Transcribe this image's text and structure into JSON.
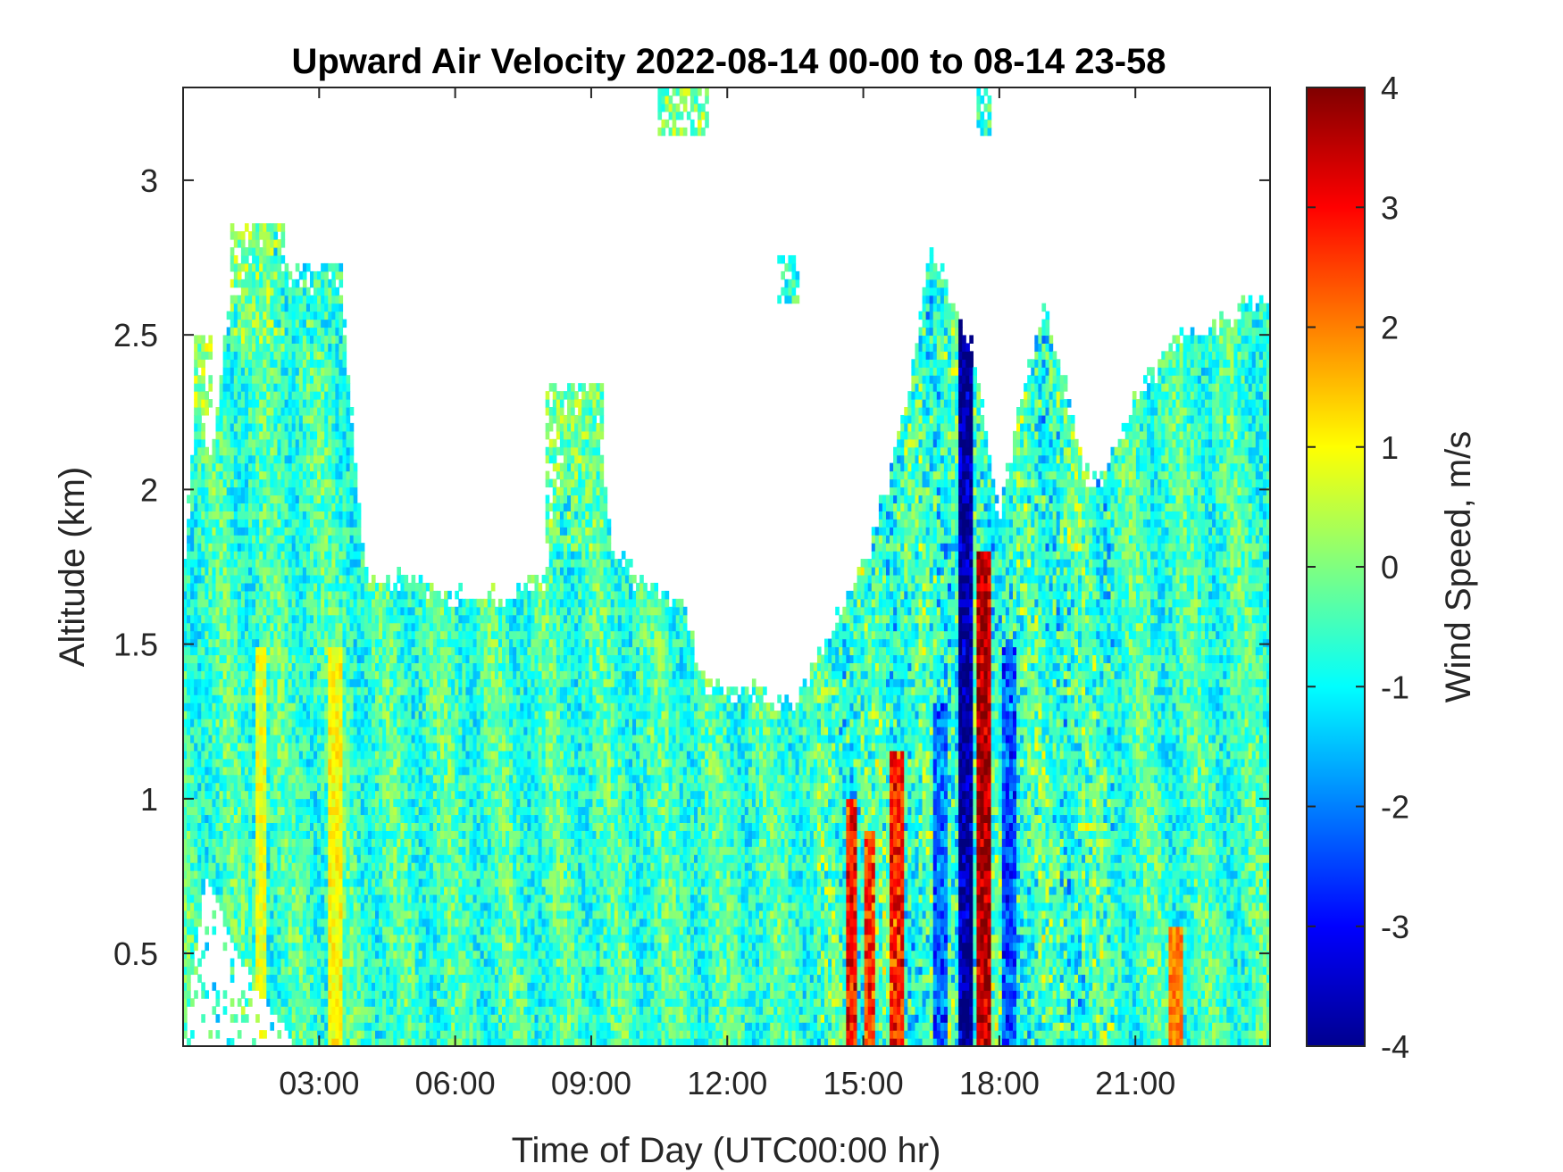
{
  "chart_data": {
    "type": "heatmap",
    "title": "Upward Air Velocity 2022-08-14 00-00 to 08-14 23-58",
    "xlabel": "Time of Day (UTC00:00 hr)",
    "ylabel": "Altitude (km)",
    "xlim_hours": [
      0,
      23.97
    ],
    "ylim_km": [
      0.2,
      3.3
    ],
    "x_ticks": [
      {
        "hour": 3,
        "label": "03:00"
      },
      {
        "hour": 6,
        "label": "06:00"
      },
      {
        "hour": 9,
        "label": "09:00"
      },
      {
        "hour": 12,
        "label": "12:00"
      },
      {
        "hour": 15,
        "label": "15:00"
      },
      {
        "hour": 18,
        "label": "18:00"
      },
      {
        "hour": 21,
        "label": "21:00"
      }
    ],
    "y_ticks": [
      {
        "value": 0.5,
        "label": "0.5"
      },
      {
        "value": 1,
        "label": "1"
      },
      {
        "value": 1.5,
        "label": "1.5"
      },
      {
        "value": 2,
        "label": "2"
      },
      {
        "value": 2.5,
        "label": "2.5"
      },
      {
        "value": 3,
        "label": "3"
      }
    ],
    "colorbar": {
      "label": "Wind Speed, m/s",
      "colormap": "jet",
      "clim": [
        -4,
        4
      ],
      "ticks": [
        {
          "value": 4,
          "label": "4"
        },
        {
          "value": 3,
          "label": "3"
        },
        {
          "value": 2,
          "label": "2"
        },
        {
          "value": 1,
          "label": "1"
        },
        {
          "value": 0,
          "label": "0"
        },
        {
          "value": -1,
          "label": "-1"
        },
        {
          "value": -2,
          "label": "-2"
        },
        {
          "value": -3,
          "label": "-3"
        },
        {
          "value": -4,
          "label": "-4"
        }
      ]
    },
    "data_top_km": [
      [
        0,
        1.7
      ],
      [
        0.3,
        2.3
      ],
      [
        0.6,
        2.1
      ],
      [
        1.0,
        2.55
      ],
      [
        1.5,
        2.75
      ],
      [
        2.0,
        2.85
      ],
      [
        2.5,
        2.6
      ],
      [
        3.0,
        2.7
      ],
      [
        3.5,
        2.6
      ],
      [
        4.0,
        1.75
      ],
      [
        5.0,
        1.7
      ],
      [
        6.0,
        1.65
      ],
      [
        7.0,
        1.65
      ],
      [
        8.0,
        1.7
      ],
      [
        8.5,
        2.2
      ],
      [
        9.0,
        2.3
      ],
      [
        9.5,
        1.8
      ],
      [
        10.0,
        1.7
      ],
      [
        11.0,
        1.65
      ],
      [
        11.5,
        1.35
      ],
      [
        12.5,
        1.35
      ],
      [
        13.5,
        1.3
      ],
      [
        14.0,
        1.45
      ],
      [
        14.5,
        1.6
      ],
      [
        15.0,
        1.75
      ],
      [
        15.5,
        2.0
      ],
      [
        16.0,
        2.3
      ],
      [
        16.5,
        2.8
      ],
      [
        17.0,
        2.6
      ],
      [
        17.5,
        2.4
      ],
      [
        18.0,
        1.9
      ],
      [
        18.5,
        2.3
      ],
      [
        19.0,
        2.6
      ],
      [
        19.5,
        2.3
      ],
      [
        20.0,
        2.0
      ],
      [
        20.5,
        2.1
      ],
      [
        21.0,
        2.3
      ],
      [
        21.5,
        2.4
      ],
      [
        22.0,
        2.5
      ],
      [
        22.5,
        2.5
      ],
      [
        23.0,
        2.55
      ],
      [
        23.5,
        2.6
      ],
      [
        23.97,
        2.6
      ]
    ],
    "data_bottom_gap_km": [
      [
        0,
        0.2
      ],
      [
        0.5,
        0.75
      ],
      [
        1.2,
        0.5
      ],
      [
        1.8,
        0.35
      ],
      [
        2.5,
        0.2
      ],
      [
        23.97,
        0.2
      ]
    ],
    "clouds": [
      {
        "t": [
          0.2,
          0.6
        ],
        "h": [
          2.25,
          2.5
        ],
        "mean": 0.2
      },
      {
        "t": [
          1.0,
          2.2
        ],
        "h": [
          2.45,
          2.85
        ],
        "mean": 0.0
      },
      {
        "t": [
          2.5,
          3.5
        ],
        "h": [
          2.45,
          2.72
        ],
        "mean": -0.7
      },
      {
        "t": [
          8.0,
          9.3
        ],
        "h": [
          1.8,
          2.35
        ],
        "mean": -0.1
      },
      {
        "t": [
          10.5,
          11.6
        ],
        "h": [
          3.15,
          3.3
        ],
        "mean": 0.0
      },
      {
        "t": [
          13.1,
          13.6
        ],
        "h": [
          2.6,
          2.75
        ],
        "mean": -0.6
      },
      {
        "t": [
          17.5,
          17.8
        ],
        "h": [
          3.15,
          3.3
        ],
        "mean": -0.5
      }
    ],
    "strong_features": [
      {
        "hour": 14.75,
        "h_top": 1.0,
        "mean": 2.8,
        "type": "updraft"
      },
      {
        "hour": 15.15,
        "h_top": 0.9,
        "mean": 2.5,
        "type": "updraft"
      },
      {
        "hour": 15.75,
        "h_top": 1.15,
        "mean": 2.7,
        "type": "updraft"
      },
      {
        "hour": 17.65,
        "h_top": 1.8,
        "mean": 3.6,
        "type": "updraft"
      },
      {
        "hour": 17.25,
        "h_top": 2.6,
        "mean": -3.8,
        "type": "downdraft"
      },
      {
        "hour": 18.2,
        "h_top": 1.5,
        "mean": -2.3,
        "type": "downdraft"
      },
      {
        "hour": 16.7,
        "h_top": 1.3,
        "mean": -2.2,
        "type": "downdraft"
      },
      {
        "hour": 21.9,
        "h_top": 0.6,
        "mean": 2.0,
        "type": "updraft"
      },
      {
        "hour": 3.35,
        "h_top": 1.5,
        "mean": 1.0,
        "type": "updraft"
      },
      {
        "hour": 1.7,
        "h_top": 1.5,
        "mean": 0.8,
        "type": "updraft"
      }
    ],
    "typical_range_ms": [
      -1.5,
      1.0
    ]
  }
}
